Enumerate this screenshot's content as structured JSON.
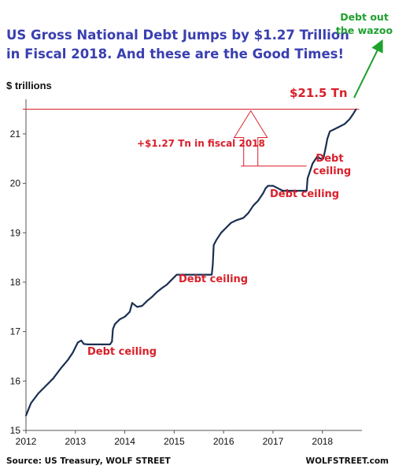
{
  "chart_data": {
    "type": "line",
    "title_lines": [
      "US Gross National Debt Jumps by $1.27 Trillion",
      "in Fiscal 2018. And these are the Good Times!"
    ],
    "ylabel": "$ trillions",
    "xlabel": "",
    "xlim": [
      2012,
      2018.8
    ],
    "ylim": [
      15,
      21.7
    ],
    "x_ticks": [
      "2012",
      "2013",
      "2014",
      "2015",
      "2016",
      "2017",
      "2018"
    ],
    "y_ticks": [
      "15",
      "16",
      "17",
      "18",
      "19",
      "20",
      "21"
    ],
    "grid": false,
    "line_color": "#1b2f52",
    "accent_color": "#d9202a",
    "series": [
      {
        "x": [
          2012.0,
          2012.1,
          2012.25,
          2012.4,
          2012.55,
          2012.7,
          2012.85,
          2012.95,
          2013.05,
          2013.12,
          2013.17,
          2013.25,
          2013.4,
          2013.55,
          2013.7,
          2013.74,
          2013.76,
          2013.8,
          2013.9,
          2014.0,
          2014.1,
          2014.15,
          2014.25,
          2014.35,
          2014.45,
          2014.55,
          2014.65,
          2014.75,
          2014.85,
          2014.95,
          2015.0,
          2015.05,
          2015.1,
          2015.2,
          2015.4,
          2015.6,
          2015.76,
          2015.78,
          2015.8,
          2015.85,
          2015.95,
          2016.05,
          2016.15,
          2016.25,
          2016.4,
          2016.5,
          2016.6,
          2016.7,
          2016.8,
          2016.85,
          2016.9,
          2017.0,
          2017.1,
          2017.2,
          2017.4,
          2017.6,
          2017.68,
          2017.7,
          2017.75,
          2017.8,
          2017.9,
          2017.95,
          2018.02,
          2018.07,
          2018.1,
          2018.15,
          2018.25,
          2018.35,
          2018.45,
          2018.55,
          2018.62,
          2018.68
        ],
        "y": [
          15.3,
          15.55,
          15.75,
          15.9,
          16.05,
          16.25,
          16.43,
          16.58,
          16.78,
          16.82,
          16.75,
          16.74,
          16.74,
          16.74,
          16.74,
          16.8,
          17.05,
          17.15,
          17.25,
          17.3,
          17.4,
          17.58,
          17.5,
          17.52,
          17.62,
          17.7,
          17.8,
          17.88,
          17.95,
          18.05,
          18.1,
          18.15,
          18.15,
          18.15,
          18.15,
          18.15,
          18.15,
          18.35,
          18.75,
          18.85,
          19.0,
          19.1,
          19.2,
          19.25,
          19.3,
          19.4,
          19.55,
          19.65,
          19.8,
          19.9,
          19.95,
          19.95,
          19.9,
          19.85,
          19.85,
          19.85,
          19.85,
          20.1,
          20.25,
          20.4,
          20.55,
          20.5,
          20.5,
          20.75,
          20.9,
          21.05,
          21.1,
          21.15,
          21.2,
          21.3,
          21.4,
          21.5
        ]
      }
    ],
    "annotations": {
      "current_value": "$21.5 Tn",
      "jump": "+$1.27 Tn in fiscal 2018",
      "debt_ceiling": "Debt ceiling",
      "debt_ceiling_split": [
        "Debt",
        "ceiling"
      ],
      "wazoo_lines": [
        "Debt out",
        "the wazoo"
      ]
    },
    "footer": {
      "source": "Source: US Treasury, WOLF STREET",
      "brand": "WOLFSTREET.com"
    }
  }
}
